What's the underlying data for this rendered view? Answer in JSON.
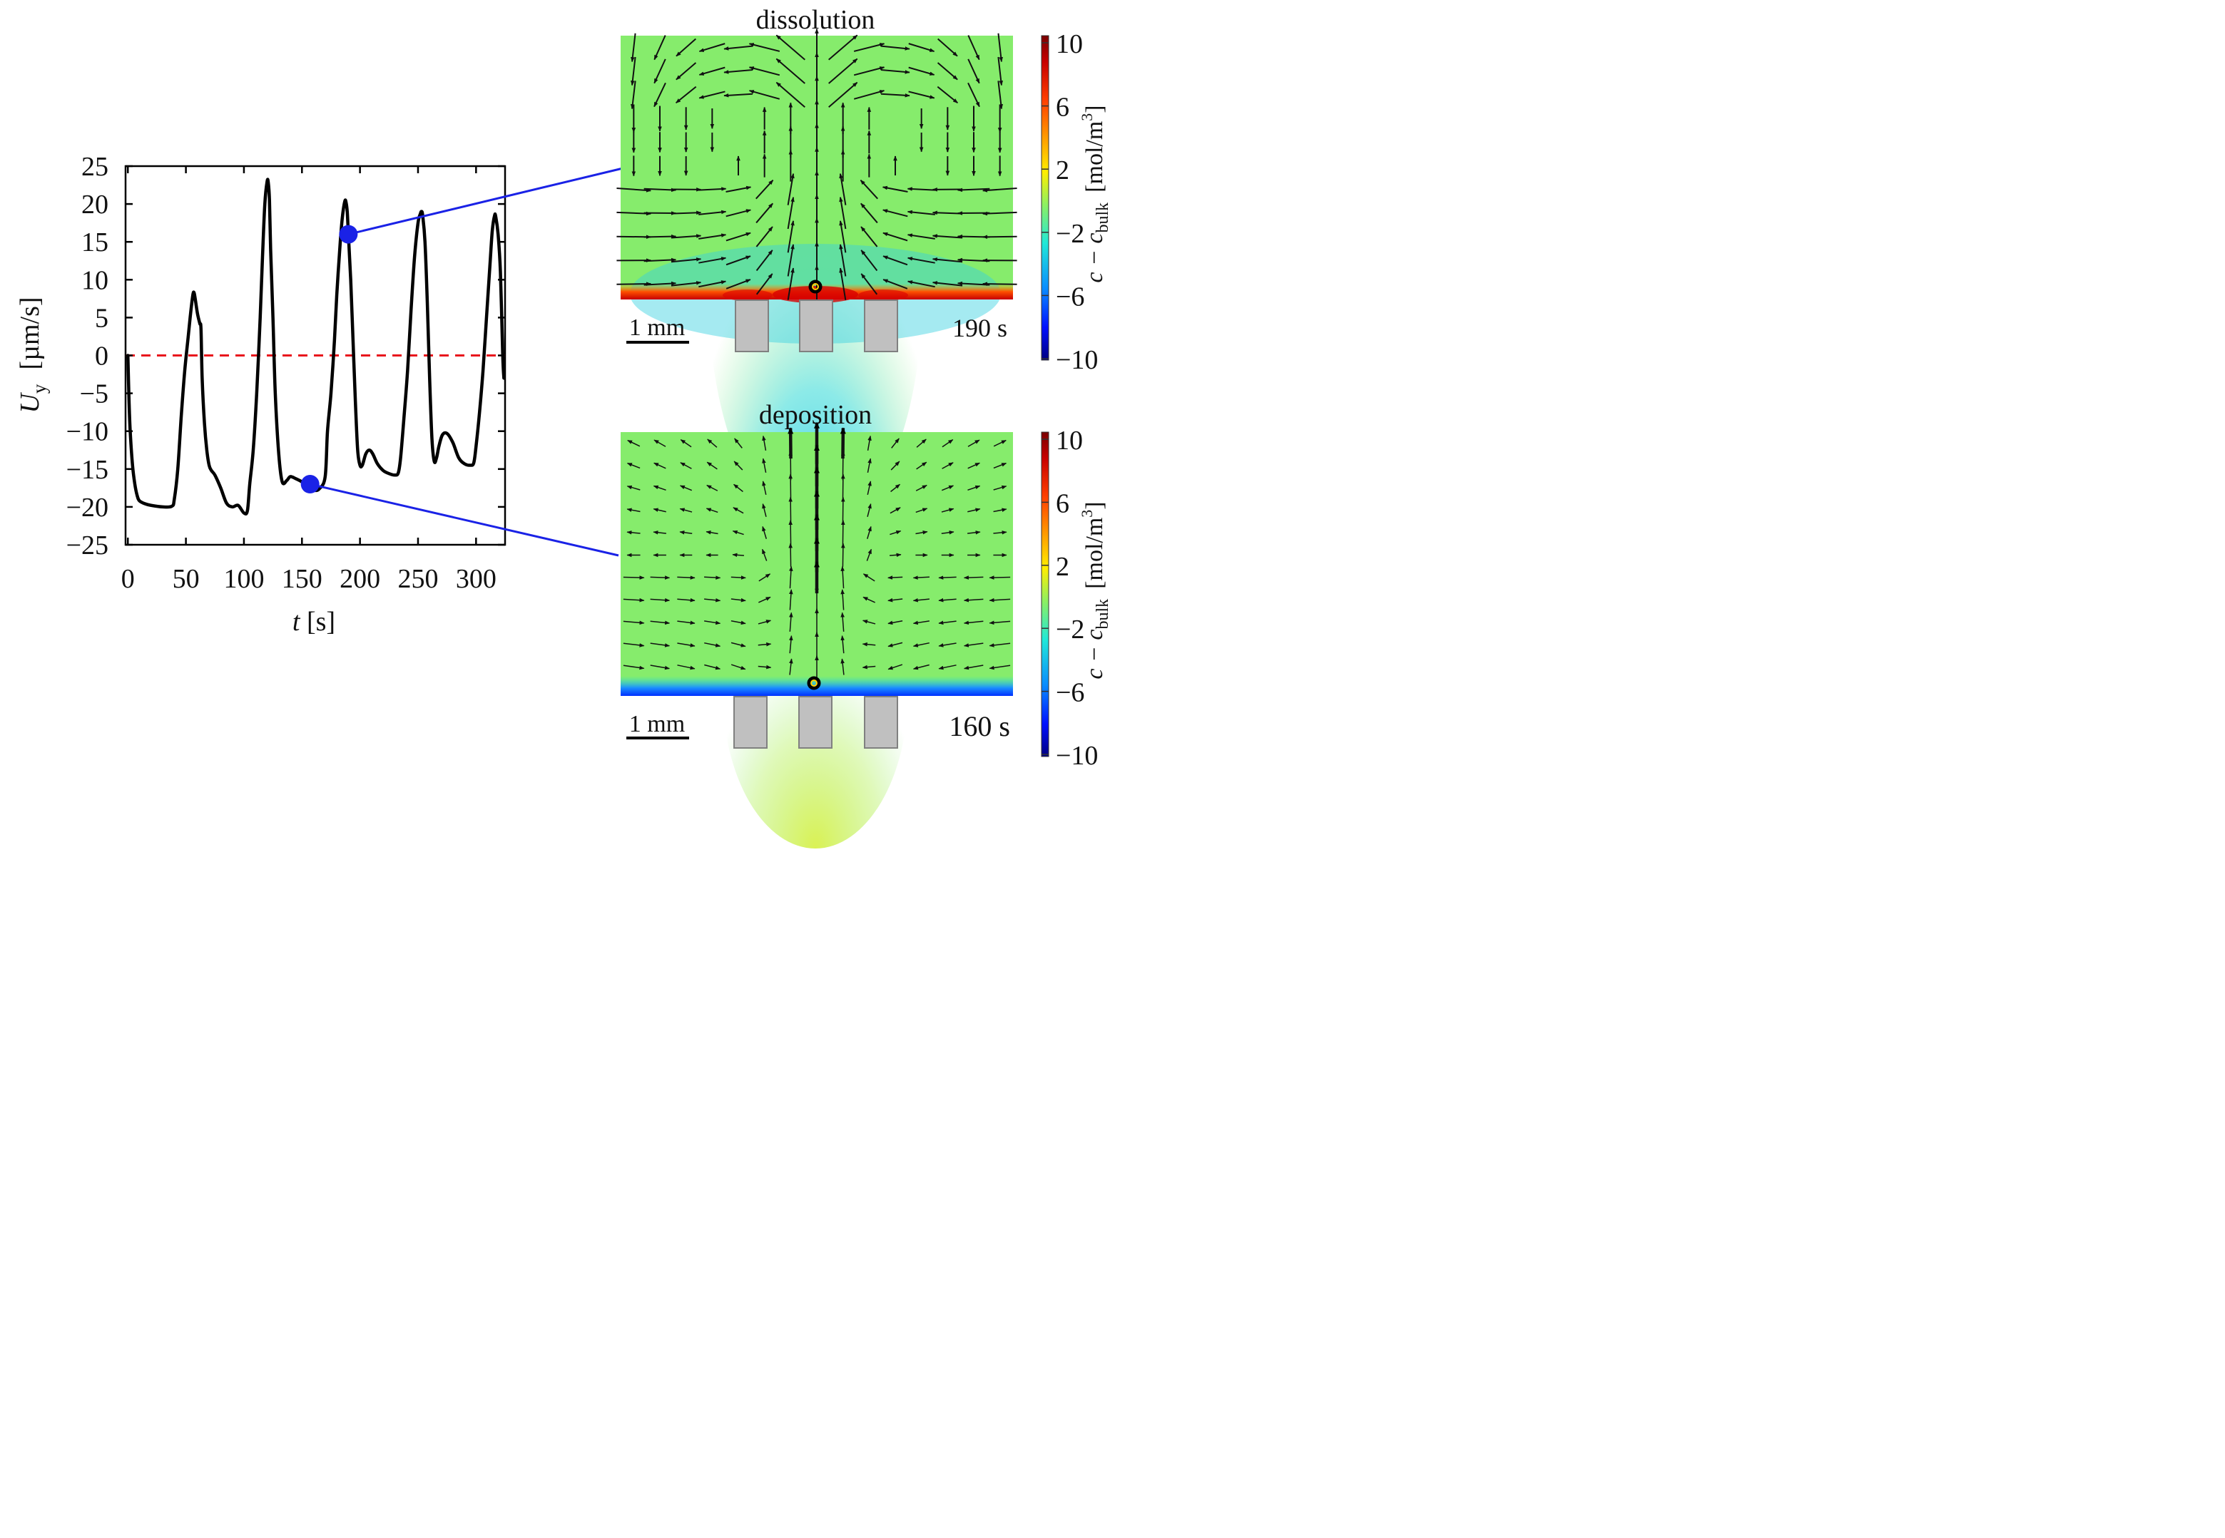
{
  "chart_data": {
    "type": "line",
    "xlabel": {
      "symbol": "t",
      "unit": "[s]"
    },
    "ylabel": {
      "symbol": "U",
      "sub": "y",
      "unit": "[µm/s]"
    },
    "xlim": [
      -2,
      325
    ],
    "ylim": [
      -25,
      25
    ],
    "x_ticks": [
      0,
      50,
      100,
      150,
      200,
      250,
      300
    ],
    "y_ticks": [
      25,
      20,
      15,
      10,
      5,
      0,
      -5,
      -10,
      -15,
      -20,
      -25
    ],
    "x_tick_labels": [
      "0",
      "50",
      "100",
      "150",
      "200",
      "250",
      "300"
    ],
    "y_tick_labels": [
      "25",
      "20",
      "15",
      "10",
      "5",
      "0",
      "−5",
      "−10",
      "−15",
      "−20",
      "−25"
    ],
    "reference_line": {
      "y": 0,
      "color": "#e8141c",
      "style": "dashed"
    },
    "series": [
      {
        "name": "U_y",
        "color": "#000000",
        "x": [
          0,
          1,
          2,
          4,
          6,
          8,
          10,
          15,
          20,
          30,
          38,
          40,
          43,
          46,
          49,
          52,
          54,
          56,
          57,
          58,
          60,
          62,
          63,
          64,
          66,
          68,
          70,
          72,
          75,
          80,
          85,
          90,
          95,
          100,
          103,
          105,
          108,
          111,
          114,
          116,
          118,
          120,
          121,
          122,
          123,
          125,
          127,
          130,
          133,
          137,
          140,
          145,
          150,
          155,
          160,
          165,
          170,
          172,
          175,
          178,
          180,
          183,
          185,
          187,
          188,
          189,
          190,
          192,
          194,
          196,
          198,
          200,
          202,
          205,
          208,
          211,
          215,
          220,
          225,
          230,
          233,
          235,
          238,
          241,
          244,
          247,
          250,
          252,
          253,
          254,
          256,
          258,
          260,
          262,
          264,
          266,
          268,
          271,
          275,
          280,
          285,
          290,
          295,
          298,
          300,
          303,
          306,
          309,
          312,
          314,
          316,
          317,
          319,
          321,
          323,
          324
        ],
        "y": [
          0,
          -6,
          -10,
          -14.5,
          -17,
          -18.5,
          -19.2,
          -19.6,
          -19.8,
          -20,
          -19.9,
          -19,
          -15,
          -8,
          -2,
          2.5,
          5.5,
          8,
          8.3,
          7.5,
          5.5,
          4.2,
          3.5,
          -3,
          -9,
          -12.5,
          -14.5,
          -15.2,
          -15.8,
          -17.5,
          -19.5,
          -20,
          -19.8,
          -20.8,
          -20.5,
          -17,
          -12.5,
          -5,
          5,
          13,
          20,
          23,
          22.8,
          20.5,
          14,
          5,
          -5,
          -13,
          -16.7,
          -16.5,
          -16,
          -16.3,
          -16.7,
          -17.3,
          -17.8,
          -17.6,
          -16,
          -10,
          -5,
          2,
          8,
          15,
          18.5,
          20.4,
          20.2,
          19,
          16,
          10,
          2,
          -6,
          -12.5,
          -14.5,
          -14.5,
          -13,
          -12.5,
          -13,
          -14.3,
          -15.2,
          -15.6,
          -15.8,
          -15.5,
          -13.5,
          -8,
          -2,
          6,
          13,
          17.5,
          18.7,
          19,
          18.5,
          15,
          7,
          -3,
          -11,
          -14,
          -13.5,
          -12,
          -10.5,
          -10.3,
          -11.5,
          -13.5,
          -14.3,
          -14.5,
          -14.2,
          -12,
          -7.5,
          -2,
          5,
          12,
          16.5,
          18.5,
          18.3,
          16,
          11,
          0,
          -3
        ]
      }
    ],
    "markers": [
      {
        "t": 190,
        "y": 16,
        "color": "#1a22e6",
        "links_to": "dissolution"
      },
      {
        "t": 157,
        "y": -17,
        "color": "#1a22e6",
        "links_to": "deposition"
      }
    ],
    "panels": [
      {
        "id": "dissolution",
        "title": "dissolution",
        "time_label": "190 s",
        "scale_label": "1 mm"
      },
      {
        "id": "deposition",
        "title": "deposition",
        "time_label": "160 s",
        "scale_label": "1 mm"
      }
    ],
    "colorbar": {
      "ticks": [
        "10",
        "6",
        "2",
        "−2",
        "−6",
        "−10"
      ],
      "label": {
        "main": "c − c",
        "sub": "bulk",
        "unit": "[mol/m",
        "sup": "3",
        "close": "]"
      },
      "colors": [
        "#7a0000",
        "#c80000",
        "#ff4000",
        "#ffa000",
        "#ffee00",
        "#8ef060",
        "#20e8d8",
        "#0a8cff",
        "#0010ff",
        "#000080"
      ]
    }
  }
}
